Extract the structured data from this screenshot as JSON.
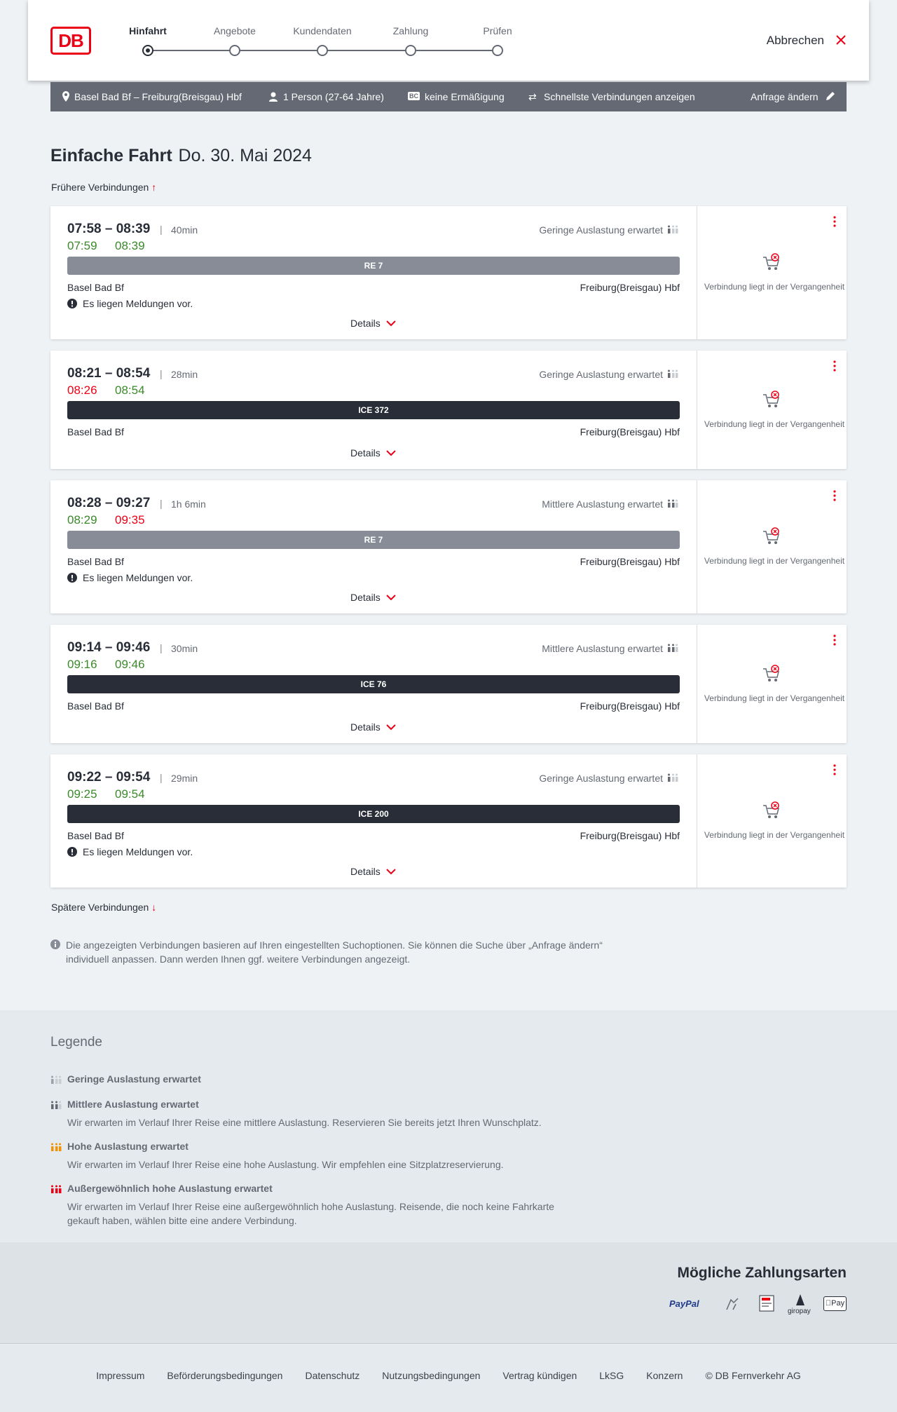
{
  "header": {
    "logo": "DB",
    "steps": [
      "Hinfahrt",
      "Angebote",
      "Kundendaten",
      "Zahlung",
      "Prüfen"
    ],
    "cancel": "Abbrechen"
  },
  "search": {
    "route": "Basel Bad Bf – Freiburg(Breisgau) Hbf",
    "passengers": "1 Person (27-64 Jahre)",
    "discount_badge": "BC",
    "discount": "keine Ermäßigung",
    "option": "Schnellste Verbindungen anzeigen",
    "edit": "Anfrage ändern"
  },
  "journey": {
    "title": "Einfache Fahrt",
    "date": "Do. 30. Mai 2024",
    "earlier": "Frühere Verbindungen",
    "later": "Spätere Verbindungen"
  },
  "connections": [
    {
      "times": "07:58 – 08:39",
      "duration": "40min",
      "departure_real": "07:59",
      "departure_real_color": "#3a8a2a",
      "arrival_real": "08:39",
      "arrival_real_color": "#3a8a2a",
      "occupancy": "Geringe Auslastung erwartet",
      "train": "RE 7",
      "train_color": "#878c96",
      "from": "Basel Bad Bf",
      "to": "Freiburg(Breisgau) Hbf",
      "notice": "Es liegen Meldungen vor.",
      "details": "Details",
      "status": "Verbindung liegt in der Vergangenheit"
    },
    {
      "times": "08:21 – 08:54",
      "duration": "28min",
      "departure_real": "08:26",
      "departure_real_color": "#ec0016",
      "arrival_real": "08:54",
      "arrival_real_color": "#3a8a2a",
      "occupancy": "Geringe Auslastung erwartet",
      "train": "ICE 372",
      "train_color": "#282d37",
      "from": "Basel Bad Bf",
      "to": "Freiburg(Breisgau) Hbf",
      "details": "Details",
      "status": "Verbindung liegt in der Vergangenheit"
    },
    {
      "times": "08:28 – 09:27",
      "duration": "1h 6min",
      "departure_real": "08:29",
      "departure_real_color": "#3a8a2a",
      "arrival_real": "09:35",
      "arrival_real_color": "#ec0016",
      "occupancy": "Mittlere Auslastung erwartet",
      "train": "RE 7",
      "train_color": "#878c96",
      "from": "Basel Bad Bf",
      "to": "Freiburg(Breisgau) Hbf",
      "notice": "Es liegen Meldungen vor.",
      "details": "Details",
      "status": "Verbindung liegt in der Vergangenheit"
    },
    {
      "times": "09:14 – 09:46",
      "duration": "30min",
      "departure_real": "09:16",
      "departure_real_color": "#3a8a2a",
      "arrival_real": "09:46",
      "arrival_real_color": "#3a8a2a",
      "occupancy": "Mittlere Auslastung erwartet",
      "train": "ICE 76",
      "train_color": "#282d37",
      "from": "Basel Bad Bf",
      "to": "Freiburg(Breisgau) Hbf",
      "details": "Details",
      "status": "Verbindung liegt in der Vergangenheit"
    },
    {
      "times": "09:22 – 09:54",
      "duration": "29min",
      "departure_real": "09:25",
      "departure_real_color": "#3a8a2a",
      "arrival_real": "09:54",
      "arrival_real_color": "#3a8a2a",
      "occupancy": "Geringe Auslastung erwartet",
      "train": "ICE 200",
      "train_color": "#282d37",
      "from": "Basel Bad Bf",
      "to": "Freiburg(Breisgau) Hbf",
      "notice": "Es liegen Meldungen vor.",
      "details": "Details",
      "status": "Verbindung liegt in der Vergangenheit"
    }
  ],
  "info": "Die angezeigten Verbindungen basieren auf Ihren eingestellten Suchoptionen. Sie können die Suche über „Anfrage ändern“ individuell anpassen. Dann werden Ihnen ggf. weitere Verbindungen angezeigt.",
  "legend": {
    "title": "Legende",
    "items": [
      {
        "title": "Geringe Auslastung erwartet",
        "color": "#9aa0a8"
      },
      {
        "title": "Mittlere Auslastung erwartet",
        "text": "Wir erwarten im Verlauf Ihrer Reise eine mittlere Auslastung. Reservieren Sie bereits jetzt Ihren Wunschplatz.",
        "color": "#646973"
      },
      {
        "title": "Hohe Auslastung erwartet",
        "text": "Wir erwarten im Verlauf Ihrer Reise eine hohe Auslastung. Wir empfehlen eine Sitzplatzreservierung.",
        "color": "#f39200"
      },
      {
        "title": "Außergewöhnlich hohe Auslastung erwartet",
        "text": "Wir erwarten im Verlauf Ihrer Reise eine außergewöhnlich hohe Auslastung. Reisende, die noch keine Fahrkarte gekauft haben, wählen bitte eine andere Verbindung.",
        "color": "#ec0016"
      }
    ]
  },
  "payments": {
    "title": "Mögliche Zahlungsarten",
    "methods": [
      "PayPal",
      "giropay",
      "Pay"
    ]
  },
  "footer": [
    "Impressum",
    "Beförderungsbedingungen",
    "Datenschutz",
    "Nutzungsbedingungen",
    "Vertrag kündigen",
    "LkSG",
    "Konzern",
    "© DB Fernverkehr AG"
  ]
}
